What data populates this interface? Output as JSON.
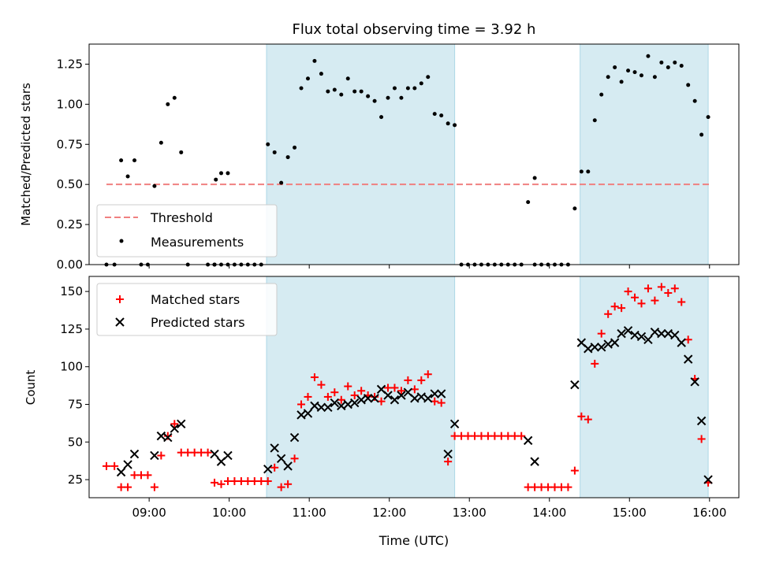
{
  "chart_data": [
    {
      "type": "scatter",
      "title": "Flux total observing time = 3.92 h",
      "xlabel": "",
      "ylabel": "Matched/Predicted stars",
      "xlim": [
        "08:15",
        "16:22"
      ],
      "ylim": [
        0,
        1.375
      ],
      "yticks": [
        "0.00",
        "0.25",
        "0.50",
        "0.75",
        "1.00",
        "1.25"
      ],
      "xticks": [
        "09:00",
        "10:00",
        "11:00",
        "12:00",
        "13:00",
        "14:00",
        "15:00",
        "16:00"
      ],
      "show_xtick_labels": false,
      "shaded_regions": [
        {
          "start": "10:28",
          "end": "12:49",
          "color": "#add8e6"
        },
        {
          "start": "14:23",
          "end": "15:59",
          "color": "#add8e6"
        }
      ],
      "threshold": {
        "name": "Threshold",
        "value": 0.5,
        "x_start": "08:28",
        "x_end": "16:00",
        "color": "#f08080",
        "style": "dashed"
      },
      "legend": {
        "placement": "lower-left",
        "entries": [
          "Threshold",
          "Measurements"
        ]
      },
      "series": [
        {
          "name": "Measurements",
          "marker": "dot",
          "color": "#000000",
          "points": [
            [
              "08:28",
              0.0
            ],
            [
              "08:34",
              0.0
            ],
            [
              "08:39",
              0.65
            ],
            [
              "08:44",
              0.55
            ],
            [
              "08:49",
              0.65
            ],
            [
              "08:54",
              0.0
            ],
            [
              "08:59",
              0.0
            ],
            [
              "09:04",
              0.49
            ],
            [
              "09:09",
              0.76
            ],
            [
              "09:14",
              1.0
            ],
            [
              "09:19",
              1.04
            ],
            [
              "09:24",
              0.7
            ],
            [
              "09:29",
              0.0
            ],
            [
              "09:44",
              0.0
            ],
            [
              "09:49",
              0.0
            ],
            [
              "09:54",
              0.0
            ],
            [
              "09:59",
              0.0
            ],
            [
              "09:49",
              0.0
            ],
            [
              "09:49",
              0.0
            ],
            [
              "09:50",
              0.53
            ],
            [
              "09:54",
              0.57
            ],
            [
              "09:59",
              0.57
            ],
            [
              "10:04",
              0.0
            ],
            [
              "10:09",
              0.0
            ],
            [
              "10:14",
              0.0
            ],
            [
              "10:19",
              0.0
            ],
            [
              "10:24",
              0.0
            ],
            [
              "10:29",
              0.75
            ],
            [
              "10:34",
              0.7
            ],
            [
              "10:39",
              0.51
            ],
            [
              "10:44",
              0.67
            ],
            [
              "10:49",
              0.73
            ],
            [
              "10:54",
              1.1
            ],
            [
              "10:59",
              1.16
            ],
            [
              "11:04",
              1.27
            ],
            [
              "11:09",
              1.19
            ],
            [
              "11:14",
              1.08
            ],
            [
              "11:19",
              1.09
            ],
            [
              "11:24",
              1.06
            ],
            [
              "11:29",
              1.16
            ],
            [
              "11:34",
              1.08
            ],
            [
              "11:39",
              1.08
            ],
            [
              "11:44",
              1.05
            ],
            [
              "11:49",
              1.02
            ],
            [
              "11:54",
              0.92
            ],
            [
              "11:59",
              1.04
            ],
            [
              "12:04",
              1.1
            ],
            [
              "12:09",
              1.04
            ],
            [
              "12:14",
              1.1
            ],
            [
              "12:19",
              1.1
            ],
            [
              "12:24",
              1.13
            ],
            [
              "12:29",
              1.17
            ],
            [
              "12:34",
              0.94
            ],
            [
              "12:39",
              0.93
            ],
            [
              "12:44",
              0.88
            ],
            [
              "12:49",
              0.87
            ],
            [
              "12:54",
              0.0
            ],
            [
              "12:59",
              0.0
            ],
            [
              "13:04",
              0.0
            ],
            [
              "13:09",
              0.0
            ],
            [
              "13:14",
              0.0
            ],
            [
              "13:19",
              0.0
            ],
            [
              "13:24",
              0.0
            ],
            [
              "13:29",
              0.0
            ],
            [
              "13:34",
              0.0
            ],
            [
              "13:39",
              0.0
            ],
            [
              "13:44",
              0.39
            ],
            [
              "13:49",
              0.54
            ],
            [
              "13:49",
              0.0
            ],
            [
              "13:54",
              0.0
            ],
            [
              "13:59",
              0.0
            ],
            [
              "14:04",
              0.0
            ],
            [
              "14:09",
              0.0
            ],
            [
              "14:14",
              0.0
            ],
            [
              "14:19",
              0.35
            ],
            [
              "14:24",
              0.58
            ],
            [
              "14:29",
              0.58
            ],
            [
              "14:34",
              0.9
            ],
            [
              "14:39",
              1.06
            ],
            [
              "14:44",
              1.17
            ],
            [
              "14:49",
              1.23
            ],
            [
              "14:54",
              1.14
            ],
            [
              "14:59",
              1.21
            ],
            [
              "15:04",
              1.2
            ],
            [
              "15:09",
              1.18
            ],
            [
              "15:14",
              1.3
            ],
            [
              "15:19",
              1.17
            ],
            [
              "15:24",
              1.26
            ],
            [
              "15:29",
              1.23
            ],
            [
              "15:34",
              1.26
            ],
            [
              "15:39",
              1.24
            ],
            [
              "15:44",
              1.12
            ],
            [
              "15:49",
              1.02
            ],
            [
              "15:54",
              0.81
            ],
            [
              "15:59",
              0.92
            ]
          ]
        }
      ]
    },
    {
      "type": "scatter",
      "title": "",
      "xlabel": "Time (UTC)",
      "ylabel": "Count",
      "xlim": [
        "08:15",
        "16:22"
      ],
      "ylim": [
        13,
        160
      ],
      "yticks": [
        "25",
        "50",
        "75",
        "100",
        "125",
        "150"
      ],
      "xticks": [
        "09:00",
        "10:00",
        "11:00",
        "12:00",
        "13:00",
        "14:00",
        "15:00",
        "16:00"
      ],
      "show_xtick_labels": true,
      "shaded_regions": [
        {
          "start": "10:28",
          "end": "12:49",
          "color": "#add8e6"
        },
        {
          "start": "14:23",
          "end": "15:59",
          "color": "#add8e6"
        }
      ],
      "legend": {
        "placement": "upper-left",
        "entries": [
          "Matched stars",
          "Predicted stars"
        ]
      },
      "series": [
        {
          "name": "Matched stars",
          "marker": "plus",
          "color": "#ff0000",
          "points": [
            [
              "08:28",
              34
            ],
            [
              "08:34",
              34
            ],
            [
              "08:39",
              20
            ],
            [
              "08:44",
              20
            ],
            [
              "08:49",
              28
            ],
            [
              "08:54",
              28
            ],
            [
              "08:59",
              28
            ],
            [
              "09:04",
              20
            ],
            [
              "09:09",
              41
            ],
            [
              "09:14",
              54
            ],
            [
              "09:19",
              62
            ],
            [
              "09:24",
              43
            ],
            [
              "09:29",
              43
            ],
            [
              "09:34",
              43
            ],
            [
              "09:39",
              43
            ],
            [
              "09:44",
              43
            ],
            [
              "09:49",
              23
            ],
            [
              "09:54",
              22
            ],
            [
              "09:59",
              24
            ],
            [
              "10:04",
              24
            ],
            [
              "10:09",
              24
            ],
            [
              "10:14",
              24
            ],
            [
              "10:19",
              24
            ],
            [
              "10:24",
              24
            ],
            [
              "10:29",
              24
            ],
            [
              "10:34",
              33
            ],
            [
              "10:39",
              20
            ],
            [
              "10:44",
              22
            ],
            [
              "10:49",
              39
            ],
            [
              "10:54",
              75
            ],
            [
              "10:59",
              80
            ],
            [
              "11:04",
              93
            ],
            [
              "11:09",
              88
            ],
            [
              "11:14",
              80
            ],
            [
              "11:19",
              83
            ],
            [
              "11:24",
              78
            ],
            [
              "11:29",
              87
            ],
            [
              "11:34",
              81
            ],
            [
              "11:39",
              84
            ],
            [
              "11:44",
              81
            ],
            [
              "11:49",
              80
            ],
            [
              "11:54",
              77
            ],
            [
              "11:59",
              86
            ],
            [
              "12:04",
              86
            ],
            [
              "12:09",
              84
            ],
            [
              "12:14",
              91
            ],
            [
              "12:19",
              85
            ],
            [
              "12:24",
              91
            ],
            [
              "12:29",
              95
            ],
            [
              "12:34",
              77
            ],
            [
              "12:39",
              76
            ],
            [
              "12:44",
              37
            ],
            [
              "12:49",
              54
            ],
            [
              "12:54",
              54
            ],
            [
              "12:59",
              54
            ],
            [
              "13:04",
              54
            ],
            [
              "13:09",
              54
            ],
            [
              "13:14",
              54
            ],
            [
              "13:19",
              54
            ],
            [
              "13:24",
              54
            ],
            [
              "13:29",
              54
            ],
            [
              "13:34",
              54
            ],
            [
              "13:39",
              54
            ],
            [
              "13:44",
              20
            ],
            [
              "13:49",
              20
            ],
            [
              "13:54",
              20
            ],
            [
              "13:59",
              20
            ],
            [
              "14:04",
              20
            ],
            [
              "14:09",
              20
            ],
            [
              "14:14",
              20
            ],
            [
              "14:19",
              31
            ],
            [
              "14:24",
              67
            ],
            [
              "14:29",
              65
            ],
            [
              "14:34",
              102
            ],
            [
              "14:39",
              122
            ],
            [
              "14:44",
              135
            ],
            [
              "14:49",
              140
            ],
            [
              "14:54",
              139
            ],
            [
              "14:59",
              150
            ],
            [
              "15:04",
              146
            ],
            [
              "15:09",
              142
            ],
            [
              "15:14",
              152
            ],
            [
              "15:19",
              144
            ],
            [
              "15:24",
              153
            ],
            [
              "15:29",
              149
            ],
            [
              "15:34",
              152
            ],
            [
              "15:39",
              143
            ],
            [
              "15:44",
              118
            ],
            [
              "15:49",
              92
            ],
            [
              "15:54",
              52
            ],
            [
              "15:59",
              23
            ]
          ]
        },
        {
          "name": "Predicted stars",
          "marker": "x",
          "color": "#000000",
          "points": [
            [
              "08:39",
              30
            ],
            [
              "08:44",
              35
            ],
            [
              "08:49",
              42
            ],
            [
              "09:04",
              41
            ],
            [
              "09:09",
              54
            ],
            [
              "09:14",
              53
            ],
            [
              "09:19",
              59
            ],
            [
              "09:24",
              62
            ],
            [
              "09:49",
              42
            ],
            [
              "09:54",
              37
            ],
            [
              "09:59",
              41
            ],
            [
              "10:29",
              32
            ],
            [
              "10:34",
              46
            ],
            [
              "10:39",
              39
            ],
            [
              "10:44",
              34
            ],
            [
              "10:49",
              53
            ],
            [
              "10:54",
              68
            ],
            [
              "10:59",
              69
            ],
            [
              "11:04",
              74
            ],
            [
              "11:09",
              73
            ],
            [
              "11:14",
              73
            ],
            [
              "11:19",
              76
            ],
            [
              "11:24",
              74
            ],
            [
              "11:29",
              75
            ],
            [
              "11:34",
              76
            ],
            [
              "11:39",
              78
            ],
            [
              "11:44",
              79
            ],
            [
              "11:49",
              79
            ],
            [
              "11:54",
              85
            ],
            [
              "11:59",
              81
            ],
            [
              "12:04",
              78
            ],
            [
              "12:09",
              81
            ],
            [
              "12:14",
              83
            ],
            [
              "12:19",
              79
            ],
            [
              "12:24",
              80
            ],
            [
              "12:29",
              79
            ],
            [
              "12:34",
              82
            ],
            [
              "12:39",
              82
            ],
            [
              "12:44",
              42
            ],
            [
              "12:49",
              62
            ],
            [
              "13:44",
              51
            ],
            [
              "13:49",
              37
            ],
            [
              "14:19",
              88
            ],
            [
              "14:24",
              116
            ],
            [
              "14:29",
              112
            ],
            [
              "14:34",
              113
            ],
            [
              "14:39",
              113
            ],
            [
              "14:44",
              115
            ],
            [
              "14:49",
              116
            ],
            [
              "14:54",
              122
            ],
            [
              "14:59",
              124
            ],
            [
              "15:04",
              121
            ],
            [
              "15:09",
              120
            ],
            [
              "15:14",
              118
            ],
            [
              "15:19",
              123
            ],
            [
              "15:24",
              122
            ],
            [
              "15:29",
              122
            ],
            [
              "15:34",
              121
            ],
            [
              "15:39",
              116
            ],
            [
              "15:44",
              105
            ],
            [
              "15:49",
              90
            ],
            [
              "15:54",
              64
            ],
            [
              "15:59",
              25
            ]
          ]
        }
      ]
    }
  ]
}
